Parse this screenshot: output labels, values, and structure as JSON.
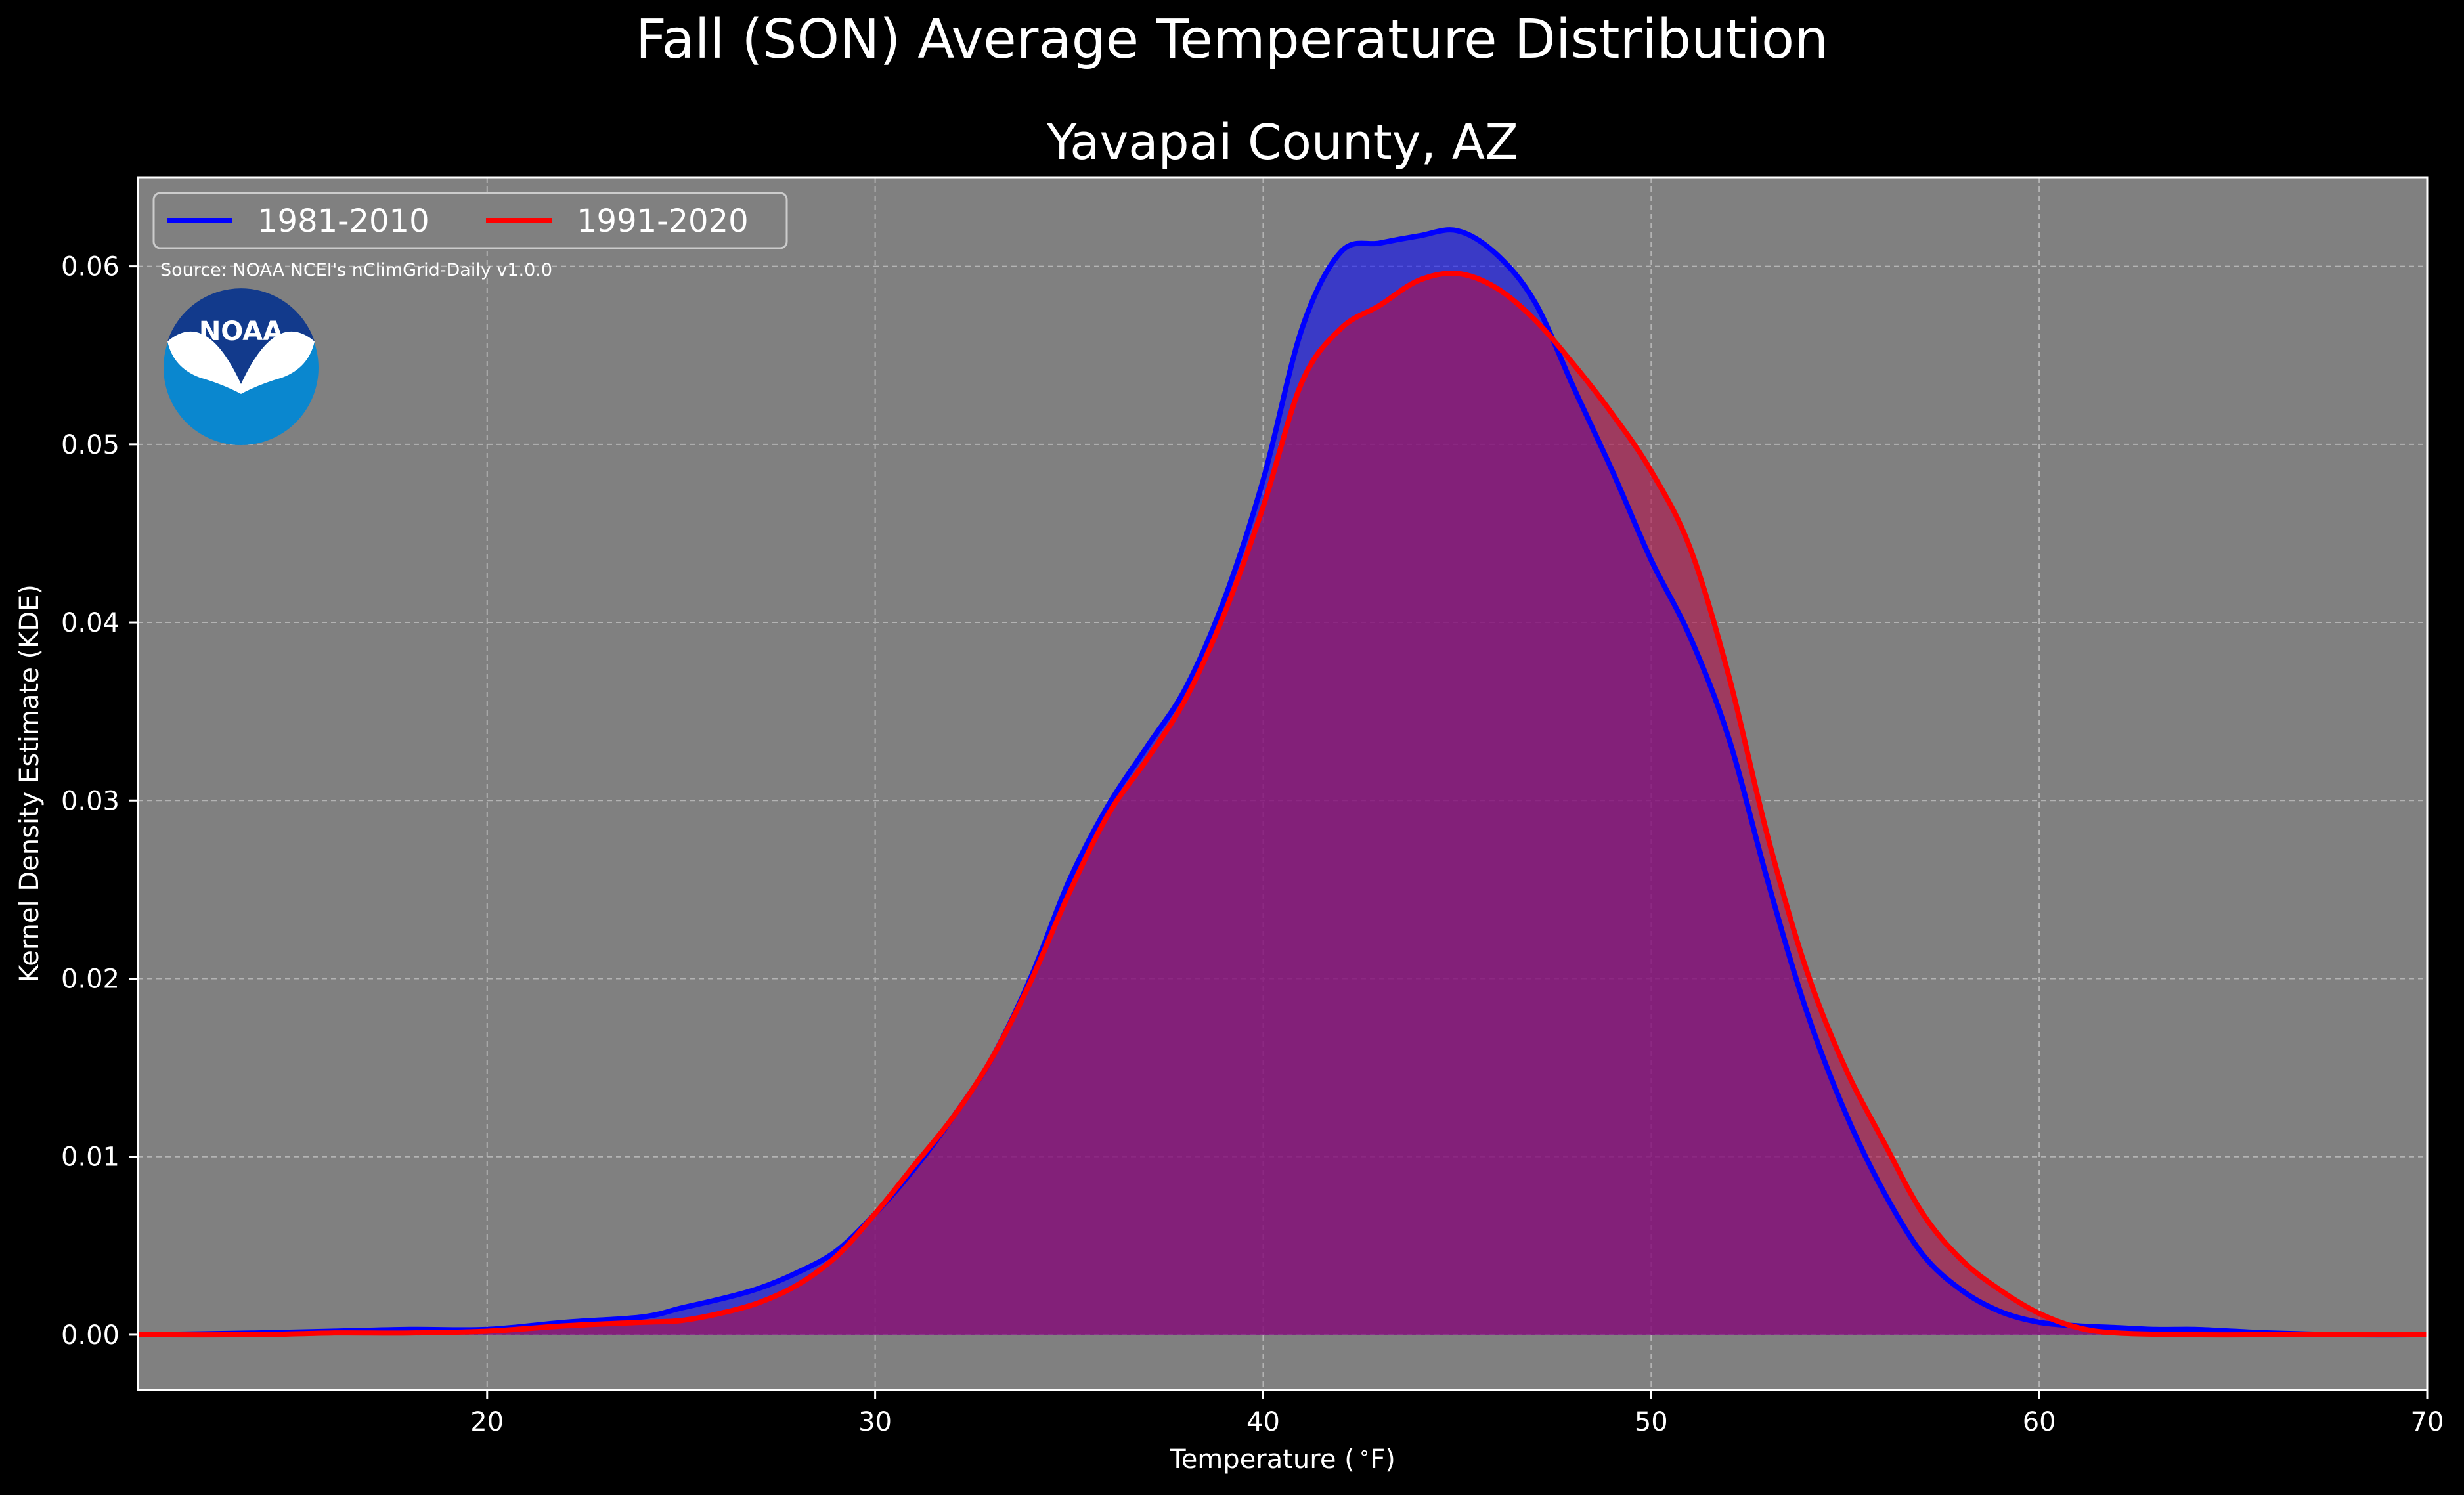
{
  "figure": {
    "suptitle": "Fall (SON) Average Temperature Distribution",
    "source": "Source: NOAA NCEI's nClimGrid-Daily v1.0.0",
    "logo_text": "NOAA",
    "logo_icon": "noaa-logo",
    "background_color": "#000000",
    "plot_background_color": "#808080"
  },
  "chart_data": {
    "type": "area",
    "title": "Yavapai County, AZ",
    "xlabel": "Temperature ($^\\circ$F)",
    "ylabel": "Kernel Density Estimate (KDE)",
    "xlim": [
      11,
      70
    ],
    "ylim": [
      -0.0031,
      0.065
    ],
    "xticks": [
      20,
      30,
      40,
      50,
      60,
      70
    ],
    "yticks": [
      0.0,
      0.01,
      0.02,
      0.03,
      0.04,
      0.05,
      0.06
    ],
    "xtick_labels": [
      "20",
      "30",
      "40",
      "50",
      "60",
      "70"
    ],
    "ytick_labels": [
      "0.00",
      "0.01",
      "0.02",
      "0.03",
      "0.04",
      "0.05",
      "0.06"
    ],
    "grid": true,
    "legend_position": "top-left",
    "series": [
      {
        "name": "1981-2010",
        "color": "#0000ff",
        "fill_color": "#0000ff",
        "points": [
          [
            11,
            0
          ],
          [
            14,
            0.0001
          ],
          [
            16,
            0.0002
          ],
          [
            18,
            0.0003
          ],
          [
            20,
            0.0003
          ],
          [
            22,
            0.0007
          ],
          [
            24,
            0.001
          ],
          [
            25,
            0.0015
          ],
          [
            26,
            0.002
          ],
          [
            27,
            0.0026
          ],
          [
            28,
            0.0035
          ],
          [
            29,
            0.0047
          ],
          [
            30,
            0.0068
          ],
          [
            31,
            0.0093
          ],
          [
            32,
            0.0122
          ],
          [
            33,
            0.0155
          ],
          [
            34,
            0.02
          ],
          [
            35,
            0.0255
          ],
          [
            36,
            0.0297
          ],
          [
            37,
            0.033
          ],
          [
            38,
            0.0363
          ],
          [
            39,
            0.0413
          ],
          [
            40,
            0.048
          ],
          [
            41,
            0.0565
          ],
          [
            42,
            0.0608
          ],
          [
            43,
            0.0613
          ],
          [
            44,
            0.0617
          ],
          [
            45,
            0.062
          ],
          [
            46,
            0.0607
          ],
          [
            47,
            0.058
          ],
          [
            48,
            0.0532
          ],
          [
            49,
            0.0485
          ],
          [
            50,
            0.0435
          ],
          [
            51,
            0.0392
          ],
          [
            52,
            0.0335
          ],
          [
            53,
            0.0255
          ],
          [
            54,
            0.0182
          ],
          [
            55,
            0.0125
          ],
          [
            56,
            0.008
          ],
          [
            57,
            0.0045
          ],
          [
            58,
            0.0025
          ],
          [
            59,
            0.0013
          ],
          [
            60,
            0.0007
          ],
          [
            61,
            0.0005
          ],
          [
            62,
            0.0004
          ],
          [
            63,
            0.0003
          ],
          [
            64,
            0.0003
          ],
          [
            65,
            0.0002
          ],
          [
            66,
            0.0001
          ],
          [
            68,
            0
          ],
          [
            70,
            0
          ]
        ]
      },
      {
        "name": "1991-2020",
        "color": "#ff0000",
        "fill_color": "#b0104a",
        "points": [
          [
            11,
            0
          ],
          [
            14,
            0
          ],
          [
            16,
            0.0001
          ],
          [
            18,
            0.0001
          ],
          [
            20,
            0.0002
          ],
          [
            22,
            0.0005
          ],
          [
            24,
            0.0007
          ],
          [
            25,
            0.0008
          ],
          [
            26,
            0.0012
          ],
          [
            27,
            0.0018
          ],
          [
            28,
            0.0028
          ],
          [
            29,
            0.0044
          ],
          [
            30,
            0.0068
          ],
          [
            31,
            0.0095
          ],
          [
            32,
            0.0122
          ],
          [
            33,
            0.0155
          ],
          [
            34,
            0.0198
          ],
          [
            35,
            0.0248
          ],
          [
            36,
            0.0292
          ],
          [
            37,
            0.0323
          ],
          [
            38,
            0.0357
          ],
          [
            39,
            0.0405
          ],
          [
            40,
            0.0465
          ],
          [
            41,
            0.0535
          ],
          [
            42,
            0.0565
          ],
          [
            43,
            0.0578
          ],
          [
            44,
            0.0592
          ],
          [
            45,
            0.0596
          ],
          [
            46,
            0.0588
          ],
          [
            47,
            0.057
          ],
          [
            48,
            0.0545
          ],
          [
            49,
            0.0517
          ],
          [
            50,
            0.0485
          ],
          [
            51,
            0.0442
          ],
          [
            52,
            0.037
          ],
          [
            53,
            0.028
          ],
          [
            54,
            0.0205
          ],
          [
            55,
            0.015
          ],
          [
            56,
            0.0108
          ],
          [
            57,
            0.0068
          ],
          [
            58,
            0.0042
          ],
          [
            59,
            0.0025
          ],
          [
            60,
            0.0012
          ],
          [
            61,
            0.0004
          ],
          [
            62,
            0.0001
          ],
          [
            64,
            0
          ],
          [
            66,
            0
          ],
          [
            68,
            0
          ],
          [
            70,
            0
          ]
        ]
      }
    ]
  }
}
